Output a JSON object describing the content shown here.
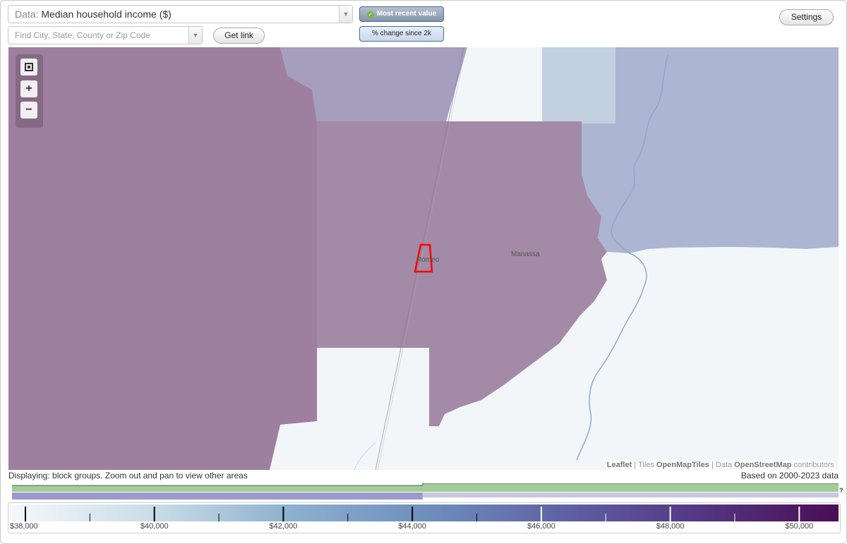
{
  "toolbar": {
    "data_prefix": "Data:",
    "data_value": "Median household income ($)",
    "search_placeholder": "Find City, State, County or Zip Code",
    "get_link_label": "Get link",
    "settings_label": "Settings",
    "toggle_recent_label": "Most recent value",
    "toggle_change_label": "% change since 2k"
  },
  "map": {
    "places": [
      {
        "label": "Romeo"
      },
      {
        "label": "Manassa"
      }
    ],
    "attribution": {
      "leaflet": "Leaflet",
      "sep1": " | ",
      "tiles_prefix": "Tiles ",
      "tiles": "OpenMapTiles",
      "sep2": " | ",
      "data_prefix": "Data ",
      "data": "OpenStreetMap",
      "contributors": " contributors"
    },
    "zoom": {
      "in": "+",
      "out": "−"
    }
  },
  "status": {
    "displaying": "Displaying: block groups. Zoom out and pan to view other areas",
    "based_on": "Based on 2000-2023 data",
    "help": "?"
  },
  "legend": {
    "min": 38000,
    "max": 50500,
    "labels": [
      "$38,000",
      "$40,000",
      "$42,000",
      "$44,000",
      "$46,000",
      "$48,000",
      "$50,000"
    ],
    "label_values": [
      38000,
      40000,
      42000,
      44000,
      46000,
      48000,
      50000
    ],
    "data_ticks": [
      38000,
      40000,
      42000,
      44000,
      46000,
      48000,
      50000
    ],
    "minor_ticks": [
      39000,
      41000,
      43000,
      45000,
      47000,
      49000
    ],
    "colors": {
      "low": "#f4f8fb",
      "high": "#4a0d55"
    }
  },
  "histogram": {
    "split_value": 44150,
    "colors": {
      "green": "#a2cc96",
      "purple": "#9d9acb"
    }
  }
}
